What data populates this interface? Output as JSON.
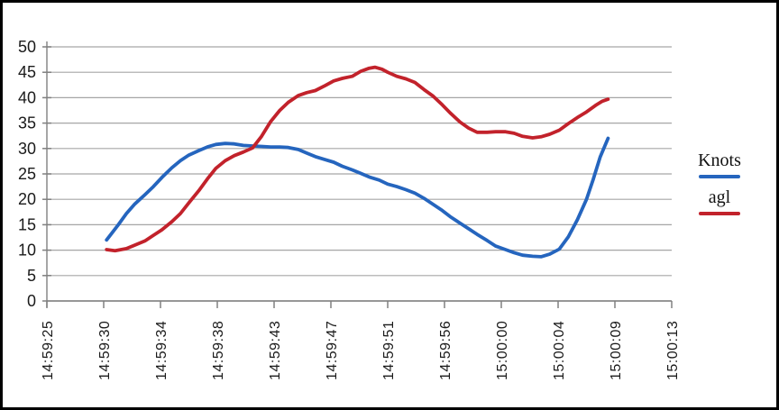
{
  "chart_data": {
    "type": "line",
    "title": "",
    "xlabel": "",
    "ylabel": "",
    "grid": true,
    "legend_position": "right",
    "x_axis": {
      "tick_labels": [
        "14:59:25",
        "14:59:30",
        "14:59:34",
        "14:59:38",
        "14:59:43",
        "14:59:47",
        "14:59:51",
        "14:59:56",
        "15:00:00",
        "15:00:04",
        "15:00:09",
        "15:00:13"
      ],
      "tick_offsets_seconds": [
        0,
        5,
        9,
        13,
        18,
        22,
        26,
        31,
        35,
        39,
        44,
        48
      ]
    },
    "y_axis": {
      "min": 0,
      "max": 50,
      "step": 5,
      "tick_labels": [
        "0",
        "5",
        "10",
        "15",
        "20",
        "25",
        "30",
        "35",
        "40",
        "45",
        "50"
      ]
    },
    "series": [
      {
        "name": "Knots",
        "color": "#2565BE",
        "points": [
          [
            5.2,
            12.0
          ],
          [
            6.0,
            14.9
          ],
          [
            6.6,
            17.2
          ],
          [
            7.2,
            19.1
          ],
          [
            7.9,
            20.9
          ],
          [
            8.5,
            22.5
          ],
          [
            9.1,
            24.3
          ],
          [
            9.8,
            26.2
          ],
          [
            10.4,
            27.6
          ],
          [
            11.0,
            28.7
          ],
          [
            11.7,
            29.6
          ],
          [
            12.3,
            30.3
          ],
          [
            12.9,
            30.8
          ],
          [
            13.7,
            31.0
          ],
          [
            14.5,
            30.9
          ],
          [
            15.3,
            30.6
          ],
          [
            16.1,
            30.5
          ],
          [
            16.9,
            30.4
          ],
          [
            17.7,
            30.3
          ],
          [
            18.4,
            30.3
          ],
          [
            19.0,
            30.2
          ],
          [
            19.7,
            29.8
          ],
          [
            20.3,
            29.1
          ],
          [
            20.9,
            28.4
          ],
          [
            21.6,
            27.8
          ],
          [
            22.2,
            27.3
          ],
          [
            22.8,
            26.5
          ],
          [
            23.5,
            25.8
          ],
          [
            24.1,
            25.1
          ],
          [
            24.7,
            24.4
          ],
          [
            25.4,
            23.8
          ],
          [
            26.0,
            23.0
          ],
          [
            26.8,
            22.5
          ],
          [
            27.6,
            21.9
          ],
          [
            28.4,
            21.2
          ],
          [
            29.2,
            20.2
          ],
          [
            30.0,
            19.0
          ],
          [
            30.8,
            17.8
          ],
          [
            31.4,
            16.6
          ],
          [
            32.1,
            15.3
          ],
          [
            32.7,
            14.2
          ],
          [
            33.3,
            13.1
          ],
          [
            34.0,
            11.9
          ],
          [
            34.6,
            10.8
          ],
          [
            35.3,
            10.1
          ],
          [
            35.9,
            9.5
          ],
          [
            36.5,
            9.0
          ],
          [
            37.2,
            8.8
          ],
          [
            37.8,
            8.7
          ],
          [
            38.4,
            9.2
          ],
          [
            39.1,
            10.2
          ],
          [
            39.9,
            12.6
          ],
          [
            40.7,
            16.0
          ],
          [
            41.5,
            20.0
          ],
          [
            42.1,
            24.0
          ],
          [
            42.7,
            28.3
          ],
          [
            43.4,
            32.0
          ]
        ]
      },
      {
        "name": "agl",
        "color": "#C2222B",
        "points": [
          [
            5.2,
            10.1
          ],
          [
            5.8,
            9.9
          ],
          [
            6.6,
            10.3
          ],
          [
            7.2,
            11.0
          ],
          [
            7.9,
            11.8
          ],
          [
            8.5,
            12.9
          ],
          [
            9.1,
            14.0
          ],
          [
            9.8,
            15.6
          ],
          [
            10.4,
            17.2
          ],
          [
            11.0,
            19.3
          ],
          [
            11.7,
            21.7
          ],
          [
            12.3,
            24.0
          ],
          [
            12.9,
            26.1
          ],
          [
            13.7,
            27.6
          ],
          [
            14.5,
            28.6
          ],
          [
            15.3,
            29.3
          ],
          [
            16.1,
            30.1
          ],
          [
            16.9,
            32.4
          ],
          [
            17.7,
            35.3
          ],
          [
            18.4,
            37.5
          ],
          [
            19.0,
            39.1
          ],
          [
            19.7,
            40.4
          ],
          [
            20.3,
            41.0
          ],
          [
            20.9,
            41.4
          ],
          [
            21.6,
            42.4
          ],
          [
            22.2,
            43.3
          ],
          [
            22.8,
            43.8
          ],
          [
            23.5,
            44.2
          ],
          [
            24.1,
            45.2
          ],
          [
            24.7,
            45.8
          ],
          [
            25.1,
            46.0
          ],
          [
            25.6,
            45.6
          ],
          [
            26.0,
            45.0
          ],
          [
            26.8,
            44.2
          ],
          [
            27.6,
            43.7
          ],
          [
            28.4,
            43.0
          ],
          [
            29.2,
            41.6
          ],
          [
            30.0,
            40.3
          ],
          [
            30.8,
            38.6
          ],
          [
            31.4,
            37.0
          ],
          [
            32.1,
            35.2
          ],
          [
            32.7,
            34.0
          ],
          [
            33.3,
            33.2
          ],
          [
            34.0,
            33.2
          ],
          [
            34.6,
            33.3
          ],
          [
            35.3,
            33.3
          ],
          [
            35.9,
            33.0
          ],
          [
            36.5,
            32.4
          ],
          [
            37.2,
            32.1
          ],
          [
            37.8,
            32.3
          ],
          [
            38.4,
            32.8
          ],
          [
            39.1,
            33.6
          ],
          [
            39.9,
            34.9
          ],
          [
            40.7,
            36.1
          ],
          [
            41.5,
            37.2
          ],
          [
            42.3,
            38.5
          ],
          [
            42.9,
            39.3
          ],
          [
            43.4,
            39.7
          ]
        ]
      }
    ],
    "style": {
      "grid_color": "#a6a6a6",
      "y_axis_color": "#808080",
      "x_axis_color": "#595959",
      "tick_color": "#808080",
      "text_color": "#1a1a1a",
      "background": "#ffffff",
      "frame_color": "#000000",
      "line_width": 3.8
    }
  },
  "legend": {
    "items": [
      {
        "label": "Knots"
      },
      {
        "label": "agl"
      }
    ]
  }
}
